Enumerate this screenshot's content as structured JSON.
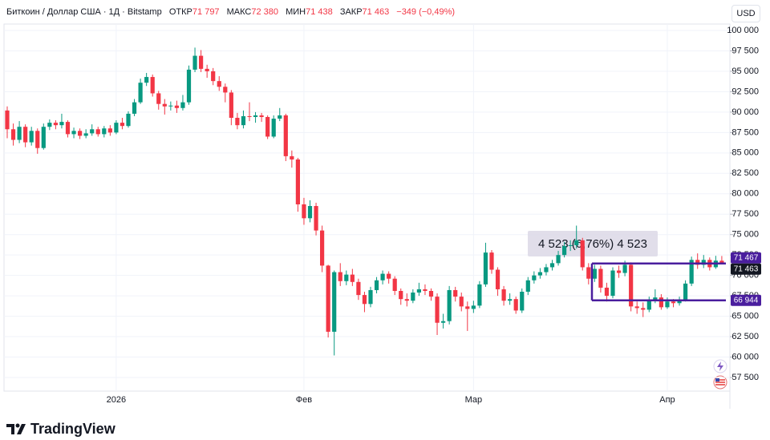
{
  "header": {
    "symbol": "Биткоин / Доллар США · 1Д · Bitstamp",
    "open_label": "ОТКР",
    "open": "71 797",
    "high_label": "МАКС",
    "high": "72 380",
    "low_label": "МИН",
    "low": "71 438",
    "close_label": "ЗАКР",
    "close": "71 463",
    "change": "−349 (−0,49%)",
    "currency": "USD"
  },
  "footer": {
    "brand": "TradingView"
  },
  "chart_data": {
    "type": "candlestick",
    "categories": [
      null,
      null,
      null,
      null,
      null,
      null,
      null,
      null,
      null,
      null,
      null,
      null,
      null,
      null,
      null,
      null,
      null,
      null,
      "2026",
      null,
      null,
      null,
      null,
      null,
      null,
      null,
      null,
      null,
      null,
      null,
      null,
      null,
      null,
      null,
      null,
      null,
      null,
      null,
      null,
      null,
      null,
      null,
      null,
      null,
      null,
      null,
      null,
      null,
      null,
      "Фев",
      null,
      null,
      null,
      null,
      null,
      null,
      null,
      null,
      null,
      null,
      null,
      null,
      null,
      null,
      null,
      null,
      null,
      null,
      null,
      null,
      null,
      null,
      null,
      null,
      null,
      null,
      null,
      "Мар",
      null,
      null,
      null,
      null,
      null,
      null,
      null,
      null,
      null,
      null,
      null,
      null,
      null,
      null,
      null,
      null,
      null,
      null,
      null,
      null,
      null,
      null,
      null,
      null,
      null,
      null,
      null,
      null,
      null,
      null,
      null,
      "Апр",
      null,
      null,
      null,
      null,
      null,
      null,
      null,
      null,
      null,
      null
    ],
    "series": [
      {
        "up_color": "#089981",
        "down_color": "#f23645",
        "open": [
          90200,
          87900,
          86600,
          88200,
          86300,
          87700,
          85600,
          88200,
          88700,
          88400,
          88800,
          87300,
          87700,
          87100,
          87400,
          87900,
          87300,
          88000,
          87500,
          88700,
          88300,
          89800,
          91200,
          93600,
          94300,
          92300,
          91000,
          90700,
          90800,
          90500,
          91200,
          95200,
          96900,
          95300,
          95000,
          93800,
          93100,
          92400,
          89300,
          88400,
          89500,
          89400,
          89600,
          89400,
          87000,
          89200,
          89600,
          84600,
          84200,
          78700,
          77000,
          78500,
          75500,
          71200,
          63100,
          70400,
          69300,
          70100,
          69200,
          67600,
          66500,
          68200,
          69400,
          70200,
          69600,
          68100,
          67100,
          66900,
          67900,
          68300,
          68100,
          67400,
          64200,
          64400,
          68200,
          67400,
          66200,
          65900,
          66300,
          68900,
          72800,
          70700,
          68300,
          66900,
          67100,
          65700,
          68000,
          69400,
          70000,
          70400,
          71000,
          71500,
          72500,
          73600,
          73700,
          74300,
          71000,
          69600,
          70800,
          68500,
          67500,
          70600,
          70300,
          71300,
          66200,
          66000,
          65800,
          67000,
          67300,
          66100,
          66800,
          66600,
          67000,
          69000,
          71900,
          71300,
          71900,
          71000,
          71797
        ],
        "high": [
          90700,
          88600,
          88900,
          88500,
          88200,
          88000,
          88600,
          89100,
          89000,
          89800,
          89000,
          88100,
          88000,
          87900,
          88500,
          88200,
          88300,
          88400,
          89000,
          89300,
          90100,
          91600,
          94100,
          94800,
          94600,
          92600,
          91600,
          91300,
          91400,
          92100,
          95700,
          97900,
          97600,
          95800,
          95400,
          94400,
          93500,
          92700,
          89900,
          90200,
          91200,
          90000,
          89900,
          89600,
          89600,
          90500,
          89800,
          85300,
          84400,
          79500,
          79200,
          78900,
          76100,
          71300,
          70600,
          71500,
          70600,
          70800,
          69600,
          68000,
          68600,
          69800,
          70600,
          70500,
          69900,
          68400,
          67800,
          68300,
          69100,
          68900,
          68400,
          67800,
          65300,
          68700,
          68600,
          67900,
          66800,
          66900,
          69300,
          74000,
          73100,
          71000,
          68700,
          67800,
          67400,
          68400,
          69800,
          70500,
          70900,
          71400,
          71900,
          73000,
          74100,
          74300,
          76100,
          74600,
          71500,
          71300,
          71200,
          69100,
          71000,
          71200,
          71800,
          71600,
          66800,
          66700,
          67400,
          68300,
          67700,
          67300,
          67100,
          67400,
          69400,
          72300,
          72700,
          72500,
          72200,
          72400,
          72380
        ],
        "low": [
          86800,
          85900,
          86200,
          85700,
          85900,
          84900,
          85400,
          87800,
          87900,
          88000,
          86900,
          86800,
          86700,
          86800,
          87100,
          87000,
          86900,
          87100,
          87300,
          87900,
          88100,
          89500,
          91000,
          93200,
          91900,
          90300,
          89700,
          90200,
          89900,
          90200,
          90900,
          94900,
          94900,
          94200,
          93300,
          92600,
          91200,
          88400,
          87900,
          88000,
          88900,
          88700,
          88800,
          86700,
          86800,
          88900,
          84000,
          83200,
          77800,
          76200,
          76500,
          74900,
          70400,
          62400,
          60200,
          68700,
          68800,
          68700,
          67000,
          65500,
          66100,
          67800,
          68900,
          69000,
          67600,
          66400,
          66200,
          66600,
          67500,
          67600,
          66900,
          62700,
          63500,
          64000,
          66800,
          65600,
          63200,
          65400,
          66000,
          68600,
          70200,
          67500,
          66300,
          66400,
          65300,
          65400,
          67600,
          69000,
          69600,
          70000,
          70600,
          71200,
          72200,
          73000,
          73300,
          70600,
          68900,
          69200,
          67900,
          66800,
          67200,
          69700,
          69900,
          65600,
          65300,
          64900,
          65500,
          66600,
          65800,
          65900,
          66100,
          66300,
          66800,
          68700,
          70800,
          70900,
          70600,
          70800,
          71438
        ],
        "close": [
          87900,
          86600,
          88200,
          86300,
          87700,
          85600,
          88200,
          88700,
          88400,
          88800,
          87300,
          87700,
          87100,
          87400,
          87900,
          87300,
          88000,
          87500,
          88700,
          88300,
          89800,
          91200,
          93600,
          94300,
          92300,
          91000,
          90700,
          90800,
          90500,
          91200,
          95200,
          96900,
          95300,
          95000,
          93800,
          93100,
          92400,
          89300,
          88400,
          89500,
          89400,
          89600,
          89400,
          87000,
          89200,
          89600,
          84600,
          84200,
          78700,
          77000,
          78500,
          75500,
          71200,
          63100,
          70400,
          69300,
          70100,
          69200,
          67600,
          66500,
          68200,
          69400,
          70200,
          69600,
          68100,
          67100,
          66900,
          67900,
          68300,
          68100,
          67400,
          64200,
          64400,
          68200,
          67400,
          66200,
          65900,
          66300,
          68900,
          72800,
          70700,
          68300,
          66900,
          67100,
          65700,
          68000,
          69400,
          70000,
          70400,
          71000,
          71500,
          72500,
          73600,
          73700,
          74300,
          71000,
          69600,
          70800,
          68500,
          67500,
          70600,
          70300,
          71300,
          66200,
          66000,
          65800,
          67000,
          67300,
          66100,
          66800,
          66600,
          67000,
          69000,
          71900,
          71300,
          71900,
          71000,
          71812,
          71463
        ]
      }
    ],
    "ylim": [
      55830,
      100785
    ],
    "yticks": [
      {
        "value": 57500,
        "label": "57 500"
      },
      {
        "value": 60000,
        "label": "60 000"
      },
      {
        "value": 62500,
        "label": "62 500"
      },
      {
        "value": 65000,
        "label": "65 000"
      },
      {
        "value": 67500,
        "label": "67 500"
      },
      {
        "value": 70000,
        "label": "70 000"
      },
      {
        "value": 72500,
        "label": "72 500"
      },
      {
        "value": 75000,
        "label": "75 000"
      },
      {
        "value": 77500,
        "label": "77 500"
      },
      {
        "value": 80000,
        "label": "80 000"
      },
      {
        "value": 82500,
        "label": "82 500"
      },
      {
        "value": 85000,
        "label": "85 000"
      },
      {
        "value": 87500,
        "label": "87 500"
      },
      {
        "value": 90000,
        "label": "90 000"
      },
      {
        "value": 92500,
        "label": "92 500"
      },
      {
        "value": 95000,
        "label": "95 000"
      },
      {
        "value": 97500,
        "label": "97 500"
      },
      {
        "value": 100000,
        "label": "100 000"
      }
    ],
    "grid": true,
    "price_labels": [
      {
        "value": 71467,
        "label": "71 467",
        "color": "#4a1e9e"
      },
      {
        "value": 71463,
        "label": "71 463",
        "color": "#131722"
      },
      {
        "value": 66944,
        "label": "66 944",
        "color": "#4a1e9e"
      }
    ],
    "measure_label": "4 523 (6,76%) 4 523"
  }
}
